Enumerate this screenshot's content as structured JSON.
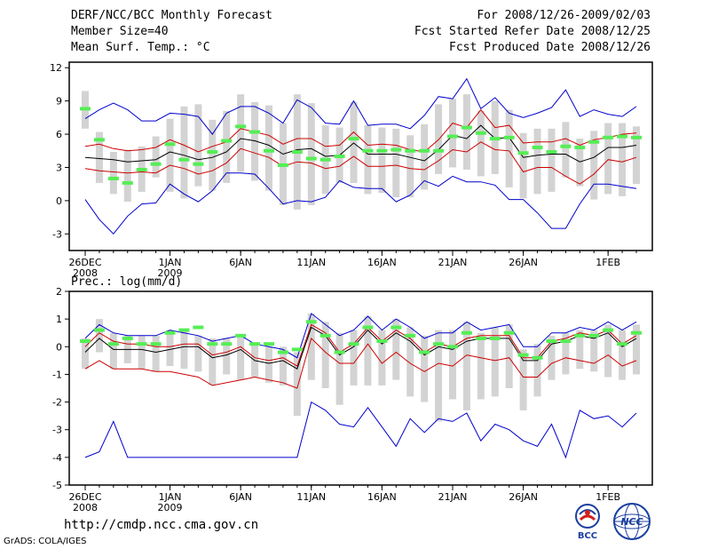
{
  "header": {
    "title": "DERF/NCC/BCC Monthly Forecast",
    "member_size": "Member Size=40",
    "variable": "Mean Surf. Temp.: °C",
    "period": "For 2008/12/26-2009/02/03",
    "start_date": "Fcst Started Refer Date 2008/12/25",
    "produced_date": "Fcst Produced Date 2008/12/26"
  },
  "footer": {
    "url": "http://cmdp.ncc.cma.gov.cn",
    "credit": "GrADS: COLA/IGES",
    "logo_bcc": "BCC",
    "logo_ncc": "NCC"
  },
  "colors": {
    "envelope": "#0000cc",
    "spread": "#cc0000",
    "mean": "#000000",
    "box": "#d3d3d3",
    "marker": "#55ee55"
  },
  "chart_data": [
    {
      "type": "line",
      "title": "Mean Surf. Temp.: °C",
      "ylabel": "°C",
      "ylim": [
        -4.5,
        12.5
      ],
      "yticks": [
        -3,
        0,
        3,
        6,
        9,
        12
      ],
      "x_labels": [
        {
          "day": 0,
          "label": "26DEC",
          "sub": "2008"
        },
        {
          "day": 6,
          "label": "1JAN",
          "sub": "2009"
        },
        {
          "day": 11,
          "label": "6JAN"
        },
        {
          "day": 16,
          "label": "11JAN"
        },
        {
          "day": 21,
          "label": "16JAN"
        },
        {
          "day": 26,
          "label": "21JAN"
        },
        {
          "day": 31,
          "label": "26JAN"
        },
        {
          "day": 37,
          "label": "1FEB"
        }
      ],
      "ndays": 40,
      "mean": [
        3.9,
        3.8,
        3.7,
        3.5,
        3.6,
        3.7,
        4.4,
        4.1,
        3.7,
        3.9,
        4.4,
        5.6,
        5.4,
        5.0,
        4.2,
        4.6,
        4.7,
        4.0,
        4.1,
        5.2,
        4.2,
        4.2,
        4.2,
        3.9,
        3.6,
        4.6,
        5.9,
        5.6,
        6.8,
        5.6,
        5.7,
        3.9,
        4.1,
        4.2,
        4.2,
        3.5,
        3.9,
        4.8,
        4.8,
        5.0
      ],
      "upper_red": [
        4.9,
        5.1,
        4.7,
        4.5,
        4.6,
        4.8,
        5.5,
        5.0,
        4.4,
        4.9,
        5.3,
        6.5,
        6.2,
        5.9,
        5.1,
        5.6,
        5.6,
        4.9,
        5.0,
        6.2,
        5.0,
        5.1,
        5.0,
        4.6,
        4.4,
        5.5,
        7.0,
        6.6,
        8.2,
        6.6,
        6.8,
        5.2,
        5.3,
        5.3,
        5.6,
        5.0,
        5.5,
        5.7,
        6.0,
        6.1
      ],
      "lower_red": [
        2.9,
        2.7,
        2.6,
        2.5,
        2.6,
        2.5,
        3.2,
        2.9,
        2.4,
        2.7,
        3.4,
        4.7,
        4.3,
        3.9,
        3.1,
        3.5,
        3.4,
        2.9,
        3.1,
        4.0,
        3.1,
        3.1,
        3.2,
        2.9,
        2.8,
        3.6,
        4.6,
        4.4,
        5.3,
        4.6,
        4.5,
        2.6,
        3.0,
        3.0,
        2.2,
        1.5,
        2.4,
        3.7,
        3.5,
        3.9
      ],
      "upper_blue": [
        7.4,
        8.2,
        8.8,
        8.2,
        7.2,
        7.2,
        7.9,
        7.8,
        7.6,
        6.0,
        7.9,
        8.5,
        8.5,
        7.9,
        7.0,
        9.1,
        8.4,
        7.0,
        6.9,
        9.0,
        6.8,
        6.9,
        6.9,
        6.5,
        7.7,
        9.4,
        9.2,
        11.0,
        8.3,
        9.3,
        7.9,
        7.5,
        7.9,
        8.4,
        10.0,
        7.6,
        8.2,
        7.8,
        7.6,
        8.5
      ],
      "lower_blue": [
        0.1,
        -1.7,
        -3.0,
        -1.4,
        -0.3,
        -0.2,
        1.5,
        0.6,
        -0.1,
        0.9,
        2.5,
        2.5,
        2.4,
        1.1,
        -0.3,
        0.0,
        -0.1,
        0.3,
        1.8,
        1.2,
        1.1,
        1.1,
        -0.1,
        0.5,
        1.8,
        1.3,
        2.2,
        1.7,
        1.7,
        1.4,
        0.1,
        0.1,
        -1.1,
        -2.5,
        -2.5,
        -0.3,
        1.5,
        1.5,
        1.3,
        1.1
      ],
      "box_top": [
        9.9,
        6.2,
        4.4,
        4.6,
        4.9,
        5.8,
        7.4,
        8.5,
        8.7,
        7.3,
        8.1,
        9.6,
        8.9,
        8.6,
        7.0,
        9.6,
        8.8,
        6.8,
        6.6,
        8.9,
        6.8,
        6.6,
        6.5,
        5.9,
        6.9,
        8.7,
        9.2,
        9.6,
        8.1,
        9.0,
        8.2,
        6.1,
        6.5,
        6.5,
        7.1,
        5.6,
        6.3,
        7.0,
        7.0,
        6.7
      ],
      "box_bottom": [
        6.5,
        1.6,
        0.6,
        -0.1,
        0.8,
        2.1,
        0.8,
        0.2,
        1.3,
        0.9,
        1.6,
        2.6,
        1.8,
        0.9,
        -0.4,
        -0.8,
        -0.4,
        0.6,
        1.6,
        1.6,
        0.6,
        0.7,
        0.3,
        0.3,
        1.0,
        2.4,
        3.0,
        2.8,
        2.2,
        2.4,
        1.2,
        0.2,
        0.6,
        0.8,
        2.1,
        1.3,
        0.1,
        0.6,
        0.4,
        1.5
      ],
      "marker": [
        8.3,
        5.5,
        2.0,
        1.6,
        2.8,
        3.3,
        5.1,
        3.7,
        3.3,
        4.4,
        5.4,
        6.7,
        6.2,
        4.5,
        3.2,
        4.4,
        3.8,
        3.7,
        4.0,
        5.6,
        4.5,
        4.5,
        4.6,
        4.5,
        4.5,
        4.5,
        5.8,
        6.6,
        6.1,
        5.6,
        5.7,
        4.3,
        4.8,
        4.4,
        4.9,
        4.8,
        5.3,
        5.7,
        5.8,
        5.7
      ]
    },
    {
      "type": "line",
      "title": "Prec.: log(mm/d)",
      "ylabel": "log(mm/d)",
      "ylim": [
        -5,
        2
      ],
      "yticks": [
        -5,
        -4,
        -3,
        -2,
        -1,
        0,
        1,
        2
      ],
      "x_labels": [
        {
          "day": 0,
          "label": "26DEC",
          "sub": "2008"
        },
        {
          "day": 6,
          "label": "1JAN",
          "sub": "2009"
        },
        {
          "day": 11,
          "label": "6JAN"
        },
        {
          "day": 16,
          "label": "11JAN"
        },
        {
          "day": 21,
          "label": "16JAN"
        },
        {
          "day": 26,
          "label": "21JAN"
        },
        {
          "day": 31,
          "label": "26JAN"
        },
        {
          "day": 37,
          "label": "1FEB"
        }
      ],
      "ndays": 40,
      "mean": [
        -0.2,
        0.3,
        -0.1,
        -0.1,
        -0.1,
        -0.2,
        -0.1,
        0.0,
        0.0,
        -0.4,
        -0.3,
        -0.1,
        -0.5,
        -0.6,
        -0.5,
        -0.8,
        0.7,
        0.4,
        -0.3,
        0.0,
        0.6,
        0.1,
        0.5,
        0.2,
        -0.3,
        0.0,
        -0.1,
        0.2,
        0.3,
        0.3,
        0.3,
        -0.5,
        -0.5,
        0.1,
        0.2,
        0.4,
        0.3,
        0.5,
        0.0,
        0.3
      ],
      "upper_red": [
        0.0,
        0.5,
        0.2,
        0.1,
        0.1,
        0.0,
        0.0,
        0.1,
        0.1,
        -0.3,
        -0.2,
        0.0,
        -0.4,
        -0.5,
        -0.4,
        -0.7,
        0.8,
        0.5,
        -0.2,
        0.1,
        0.7,
        0.2,
        0.6,
        0.3,
        -0.2,
        0.1,
        0.0,
        0.3,
        0.4,
        0.4,
        0.4,
        -0.4,
        -0.4,
        0.2,
        0.3,
        0.5,
        0.4,
        0.6,
        0.1,
        0.4
      ],
      "lower_red": [
        -0.8,
        -0.5,
        -0.8,
        -0.8,
        -0.8,
        -0.9,
        -0.9,
        -1.0,
        -1.1,
        -1.4,
        -1.3,
        -1.2,
        -1.1,
        -1.2,
        -1.3,
        -1.5,
        0.3,
        -0.2,
        -0.6,
        -0.6,
        0.1,
        -0.6,
        -0.2,
        -0.6,
        -0.9,
        -0.6,
        -0.7,
        -0.3,
        -0.4,
        -0.5,
        -0.4,
        -1.1,
        -1.1,
        -0.6,
        -0.4,
        -0.5,
        -0.6,
        -0.3,
        -0.7,
        -0.5
      ],
      "upper_blue": [
        0.3,
        0.8,
        0.5,
        0.4,
        0.4,
        0.4,
        0.6,
        0.5,
        0.4,
        0.2,
        0.3,
        0.4,
        0.1,
        0.0,
        -0.1,
        -0.4,
        1.2,
        0.8,
        0.4,
        0.6,
        1.1,
        0.6,
        1.0,
        0.7,
        0.3,
        0.5,
        0.5,
        0.9,
        0.6,
        0.7,
        0.8,
        0.0,
        0.0,
        0.5,
        0.5,
        0.7,
        0.6,
        0.9,
        0.6,
        0.9
      ],
      "lower_blue": [
        -4.0,
        -3.8,
        -2.7,
        -4.0,
        -4.0,
        -4.0,
        -4.0,
        -4.0,
        -4.0,
        -4.0,
        -4.0,
        -4.0,
        -4.0,
        -4.0,
        -4.0,
        -4.0,
        -2.0,
        -2.3,
        -2.8,
        -2.9,
        -2.2,
        -2.9,
        -3.6,
        -2.6,
        -3.1,
        -2.6,
        -2.7,
        -2.4,
        -3.4,
        -2.8,
        -3.0,
        -3.4,
        -3.6,
        -2.8,
        -4.0,
        -2.3,
        -2.6,
        -2.5,
        -2.9,
        -2.4
      ],
      "box_top": [
        0.3,
        1.0,
        0.5,
        0.4,
        0.4,
        0.4,
        0.6,
        0.6,
        0.4,
        0.3,
        0.3,
        0.4,
        0.1,
        0.0,
        0.0,
        -0.2,
        1.2,
        0.9,
        0.5,
        0.6,
        1.1,
        0.6,
        1.0,
        0.7,
        0.4,
        0.6,
        0.6,
        0.9,
        0.5,
        0.7,
        0.8,
        -0.1,
        0.1,
        0.4,
        0.5,
        0.6,
        0.6,
        0.8,
        0.6,
        0.8
      ],
      "box_bottom": [
        -0.8,
        -0.2,
        -0.8,
        -0.6,
        -0.8,
        -0.9,
        -0.7,
        -0.8,
        -0.9,
        -1.4,
        -1.0,
        -1.2,
        -1.1,
        -1.3,
        -1.4,
        -2.5,
        -1.2,
        -1.5,
        -2.1,
        -1.4,
        -1.4,
        -1.4,
        -1.2,
        -1.8,
        -2.0,
        -2.7,
        -1.9,
        -2.3,
        -1.9,
        -1.8,
        -1.5,
        -2.3,
        -1.8,
        -1.2,
        -1.0,
        -0.8,
        -0.9,
        -1.1,
        -1.2,
        -1.0
      ],
      "marker": [
        0.2,
        0.6,
        0.1,
        0.3,
        0.1,
        0.1,
        0.5,
        0.6,
        0.7,
        0.1,
        0.1,
        0.4,
        0.1,
        0.1,
        -0.2,
        -0.1,
        0.9,
        0.4,
        -0.2,
        0.1,
        0.7,
        0.2,
        0.7,
        0.4,
        -0.2,
        0.1,
        0.0,
        0.5,
        0.3,
        0.3,
        0.5,
        -0.3,
        -0.4,
        0.2,
        0.2,
        0.4,
        0.4,
        0.6,
        0.1,
        0.5
      ]
    }
  ]
}
